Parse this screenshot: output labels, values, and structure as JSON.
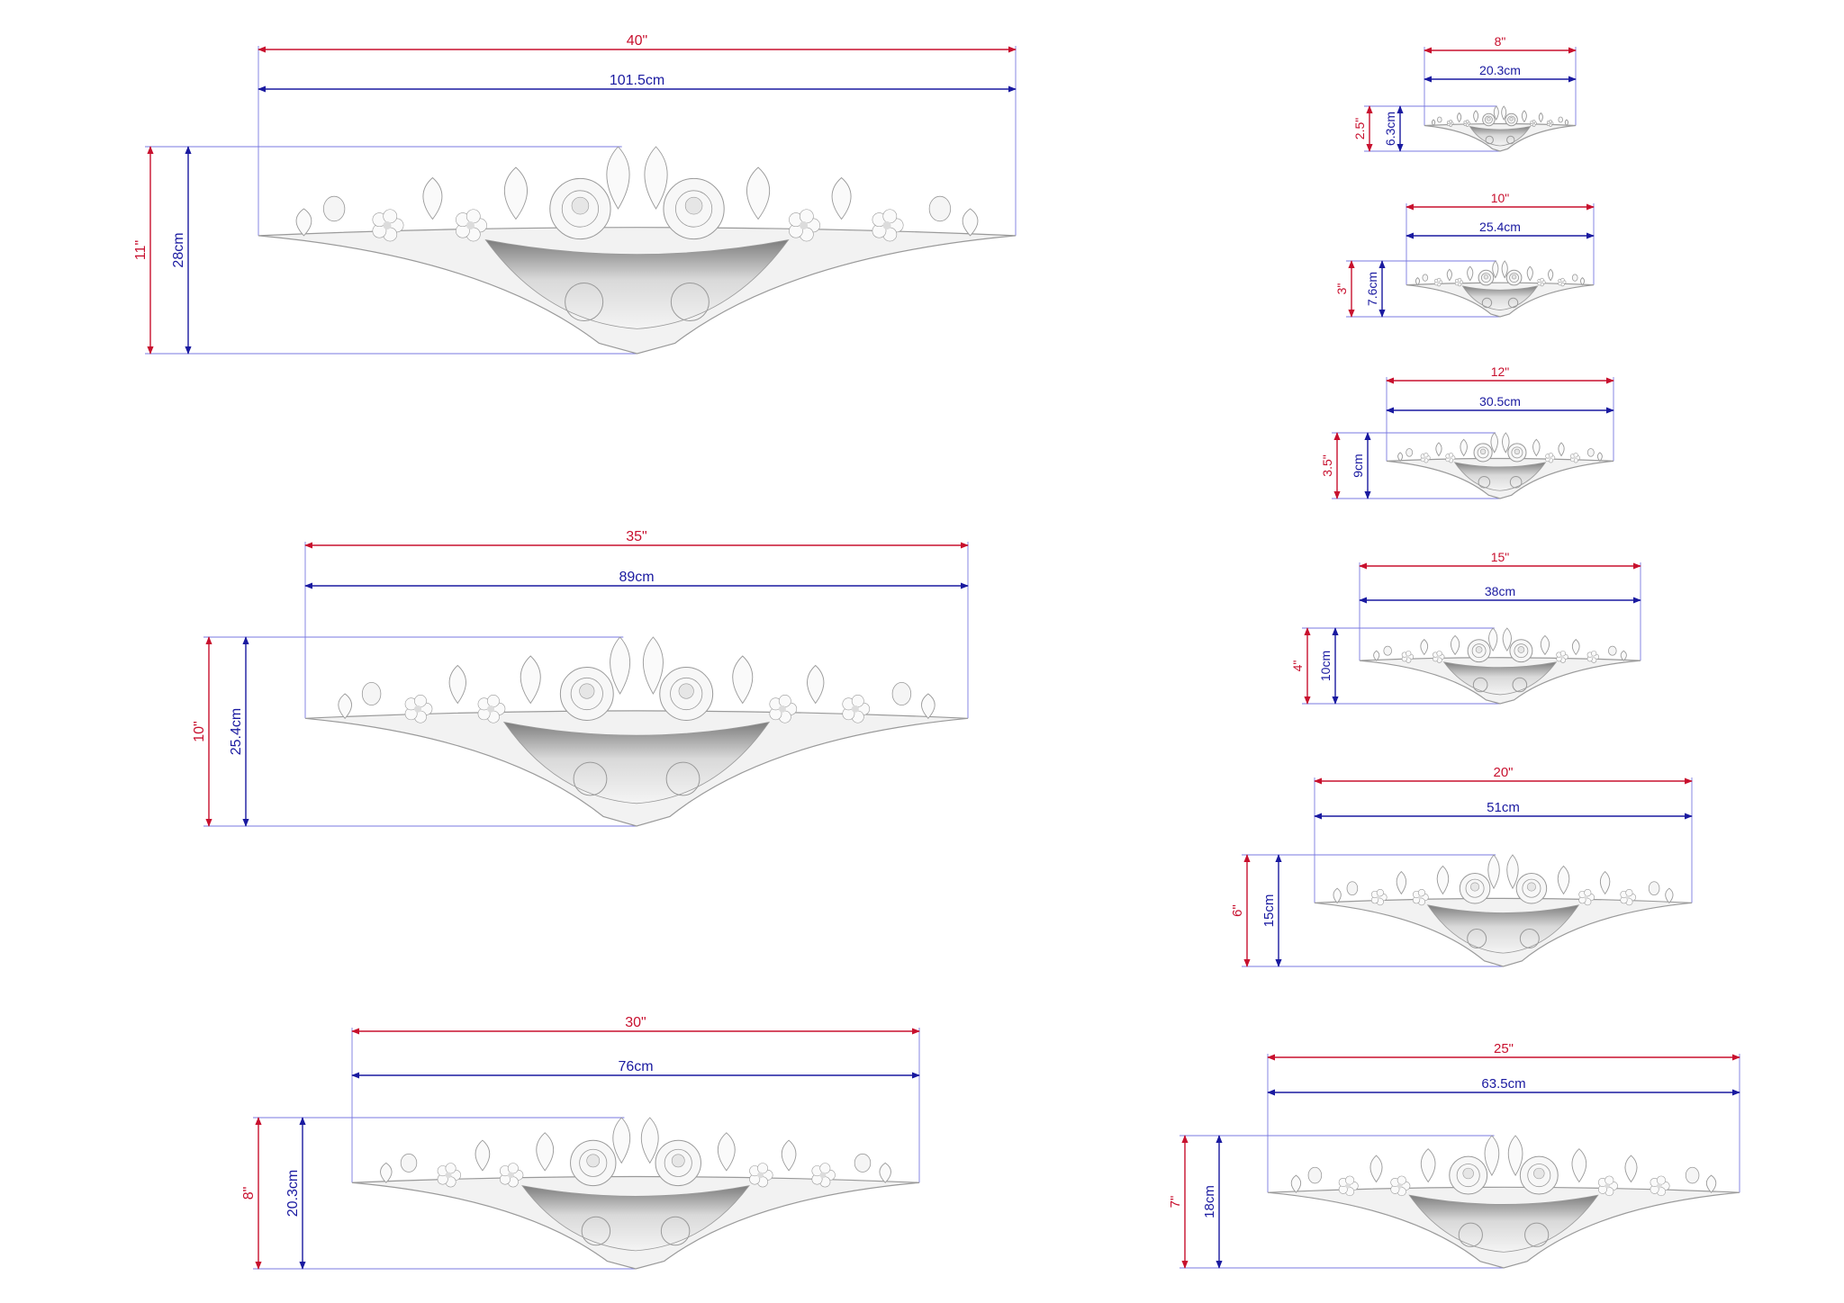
{
  "colors": {
    "inch": "#c8102e",
    "cm": "#1a1aa0",
    "guide": "#7a7ae0",
    "ornament_fill": "#f2f2f2",
    "ornament_shade": "#9a9a9a"
  },
  "ornaments": [
    {
      "id": "40in",
      "width_in": "40\"",
      "width_cm": "101.5cm",
      "height_in": "11\"",
      "height_cm": "28cm"
    },
    {
      "id": "35in",
      "width_in": "35\"",
      "width_cm": "89cm",
      "height_in": "10\"",
      "height_cm": "25.4cm"
    },
    {
      "id": "30in",
      "width_in": "30\"",
      "width_cm": "76cm",
      "height_in": "8\"",
      "height_cm": "20.3cm"
    },
    {
      "id": "8in",
      "width_in": "8\"",
      "width_cm": "20.3cm",
      "height_in": "2.5\"",
      "height_cm": "6.3cm"
    },
    {
      "id": "10in",
      "width_in": "10\"",
      "width_cm": "25.4cm",
      "height_in": "3\"",
      "height_cm": "7.6cm"
    },
    {
      "id": "12in",
      "width_in": "12\"",
      "width_cm": "30.5cm",
      "height_in": "3.5\"",
      "height_cm": "9cm"
    },
    {
      "id": "15in",
      "width_in": "15\"",
      "width_cm": "38cm",
      "height_in": "4\"",
      "height_cm": "10cm"
    },
    {
      "id": "20in",
      "width_in": "20\"",
      "width_cm": "51cm",
      "height_in": "6\"",
      "height_cm": "15cm"
    },
    {
      "id": "25in",
      "width_in": "25\"",
      "width_cm": "63.5cm",
      "height_in": "7\"",
      "height_cm": "18cm"
    }
  ]
}
